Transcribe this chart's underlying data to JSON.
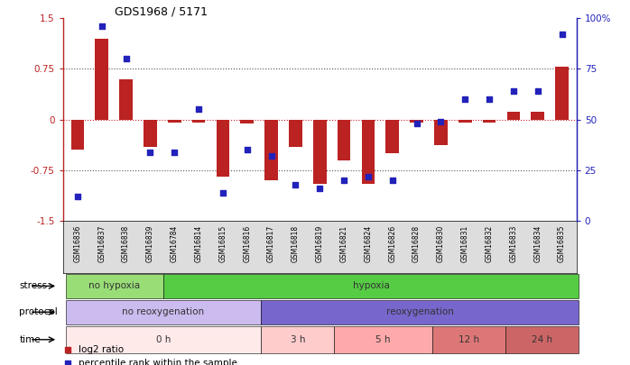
{
  "title": "GDS1968 / 5171",
  "samples": [
    "GSM16836",
    "GSM16837",
    "GSM16838",
    "GSM16839",
    "GSM16784",
    "GSM16814",
    "GSM16815",
    "GSM16816",
    "GSM16817",
    "GSM16818",
    "GSM16819",
    "GSM16821",
    "GSM16824",
    "GSM16826",
    "GSM16828",
    "GSM16830",
    "GSM16831",
    "GSM16832",
    "GSM16833",
    "GSM16834",
    "GSM16835"
  ],
  "log2ratio": [
    -0.45,
    1.2,
    0.6,
    -0.4,
    -0.05,
    -0.05,
    -0.85,
    -0.06,
    -0.9,
    -0.4,
    -0.95,
    -0.6,
    -0.95,
    -0.5,
    -0.04,
    -0.38,
    -0.04,
    -0.04,
    0.12,
    0.12,
    0.78
  ],
  "pct_rank": [
    12,
    96,
    80,
    34,
    34,
    55,
    14,
    35,
    32,
    18,
    16,
    20,
    22,
    20,
    48,
    49,
    60,
    60,
    64,
    64,
    92
  ],
  "bar_color": "#bb2222",
  "dot_color": "#2222bb",
  "ylim_left": [
    -1.5,
    1.5
  ],
  "ylim_right": [
    0,
    100
  ],
  "yticks_left": [
    -1.5,
    -0.75,
    0,
    0.75,
    1.5
  ],
  "ytick_labels_left": [
    "-1.5",
    "-0.75",
    "0",
    "0.75",
    "1.5"
  ],
  "yticks_right": [
    0,
    25,
    50,
    75,
    100
  ],
  "ytick_labels_right": [
    "0",
    "25",
    "50",
    "75",
    "100%"
  ],
  "hlines": [
    0.75,
    -0.75
  ],
  "hline0_color": "#cc2222",
  "hline_dotted_color": "#555555",
  "stress_groups": [
    {
      "label": "no hypoxia",
      "start": 0,
      "end": 4,
      "color": "#99dd77"
    },
    {
      "label": "hypoxia",
      "start": 4,
      "end": 21,
      "color": "#55cc44"
    }
  ],
  "protocol_groups": [
    {
      "label": "no reoxygenation",
      "start": 0,
      "end": 8,
      "color": "#ccbbee"
    },
    {
      "label": "reoxygenation",
      "start": 8,
      "end": 21,
      "color": "#7766cc"
    }
  ],
  "time_groups": [
    {
      "label": "0 h",
      "start": 0,
      "end": 8,
      "color": "#ffeaea"
    },
    {
      "label": "3 h",
      "start": 8,
      "end": 11,
      "color": "#ffcccc"
    },
    {
      "label": "5 h",
      "start": 11,
      "end": 15,
      "color": "#ffaaaa"
    },
    {
      "label": "12 h",
      "start": 15,
      "end": 18,
      "color": "#dd7777"
    },
    {
      "label": "24 h",
      "start": 18,
      "end": 21,
      "color": "#cc6666"
    }
  ],
  "legend_items": [
    {
      "label": "log2 ratio",
      "color": "#bb2222"
    },
    {
      "label": "percentile rank within the sample",
      "color": "#2222bb"
    }
  ]
}
